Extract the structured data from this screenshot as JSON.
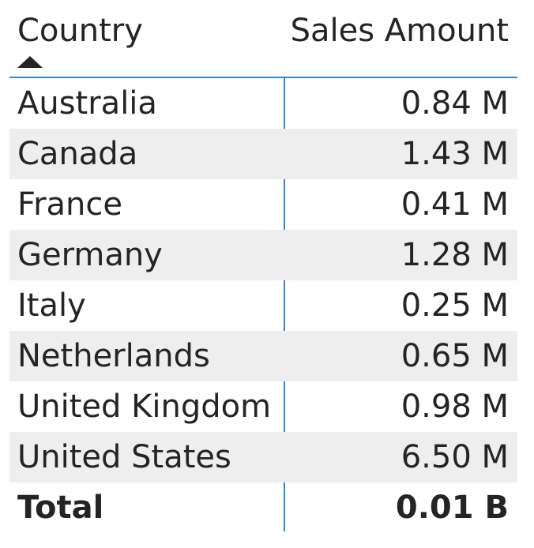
{
  "table": {
    "headers": {
      "country": "Country",
      "sales": "Sales Amount"
    },
    "sort": {
      "column": "Country",
      "direction": "ascending",
      "icon": "sort-ascending-icon"
    },
    "rows": [
      {
        "country": "Australia",
        "sales": "0.84 M"
      },
      {
        "country": "Canada",
        "sales": "1.43 M"
      },
      {
        "country": "France",
        "sales": "0.41 M"
      },
      {
        "country": "Germany",
        "sales": "1.28 M"
      },
      {
        "country": "Italy",
        "sales": "0.25 M"
      },
      {
        "country": "Netherlands",
        "sales": "0.65 M"
      },
      {
        "country": "United Kingdom",
        "sales": "0.98 M"
      },
      {
        "country": "United States",
        "sales": "6.50 M"
      }
    ],
    "total": {
      "label": "Total",
      "sales": "0.01 B"
    },
    "colors": {
      "text": "#252423",
      "stripe": "#eeeeee",
      "accent": "#2b88d8"
    }
  }
}
